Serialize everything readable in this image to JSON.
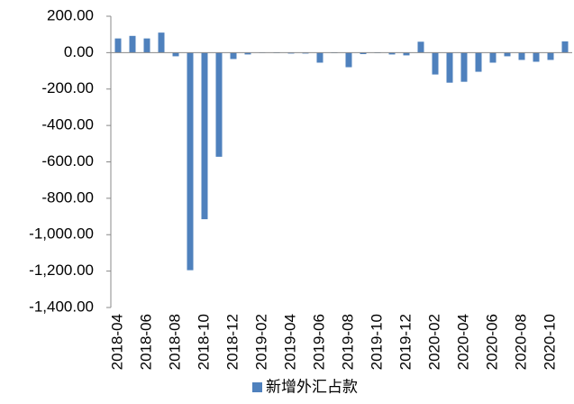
{
  "chart_data": {
    "type": "bar",
    "categories": [
      "2018-04",
      null,
      "2018-06",
      null,
      "2018-08",
      null,
      "2018-10",
      null,
      "2018-12",
      null,
      "2019-02",
      null,
      "2019-04",
      null,
      "2019-06",
      null,
      "2019-08",
      null,
      "2019-10",
      null,
      "2019-12",
      null,
      "2020-02",
      null,
      "2020-04",
      null,
      "2020-06",
      null,
      "2020-08",
      null,
      "2020-10",
      null
    ],
    "series": [
      {
        "name": "新增外汇占款",
        "color": "#4f81bd",
        "values": [
          78,
          92,
          78,
          110,
          -20,
          -1195,
          -915,
          -572,
          -35,
          -10,
          -2,
          -3,
          -5,
          -5,
          -55,
          -3,
          -80,
          -8,
          -3,
          -10,
          -15,
          60,
          -120,
          -165,
          -160,
          -105,
          -55,
          -20,
          -40,
          -50,
          -40,
          62
        ]
      }
    ],
    "ylim": [
      -1400,
      200
    ],
    "yticks": [
      {
        "value": 200,
        "label": "200.00"
      },
      {
        "value": 0,
        "label": "0.00"
      },
      {
        "value": -200,
        "label": "-200.00"
      },
      {
        "value": -400,
        "label": "-400.00"
      },
      {
        "value": -600,
        "label": "-600.00"
      },
      {
        "value": -800,
        "label": "-800.00"
      },
      {
        "value": -1000,
        "label": "-1,000.00"
      },
      {
        "value": -1200,
        "label": "-1,200.00"
      },
      {
        "value": -1400,
        "label": "-1,400.00"
      }
    ],
    "legend": "bottom"
  }
}
